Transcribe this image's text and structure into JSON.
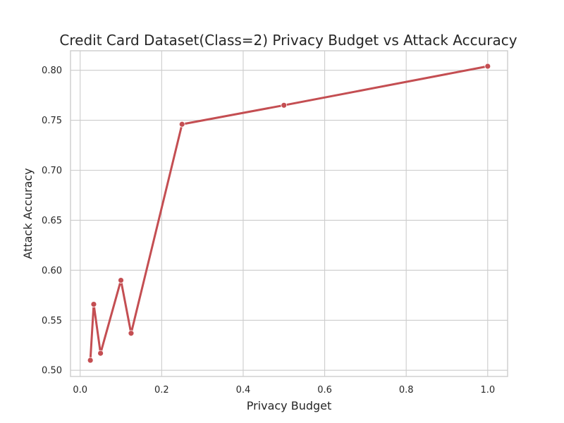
{
  "chart_data": {
    "type": "line",
    "title": "Credit Card Dataset(Class=2) Privacy Budget vs Attack Accuracy",
    "xlabel": "Privacy Budget",
    "ylabel": "Attack Accuracy",
    "xlim": [
      -0.0237,
      1.0488
    ],
    "ylim": [
      0.4938,
      0.8195
    ],
    "xticks": [
      0.0,
      0.2,
      0.4,
      0.6,
      0.8,
      1.0
    ],
    "xtick_labels": [
      "0.0",
      "0.2",
      "0.4",
      "0.6",
      "0.8",
      "1.0"
    ],
    "yticks": [
      0.5,
      0.55,
      0.6,
      0.65,
      0.7,
      0.75,
      0.8
    ],
    "ytick_labels": [
      "0.50",
      "0.55",
      "0.60",
      "0.65",
      "0.70",
      "0.75",
      "0.80"
    ],
    "grid": true,
    "series": [
      {
        "color": "#c44e52",
        "x": [
          0.025,
          0.0333,
          0.05,
          0.1,
          0.125,
          0.25,
          0.5,
          1.0
        ],
        "y": [
          0.51,
          0.566,
          0.517,
          0.59,
          0.537,
          0.746,
          0.765,
          0.804
        ]
      }
    ]
  }
}
